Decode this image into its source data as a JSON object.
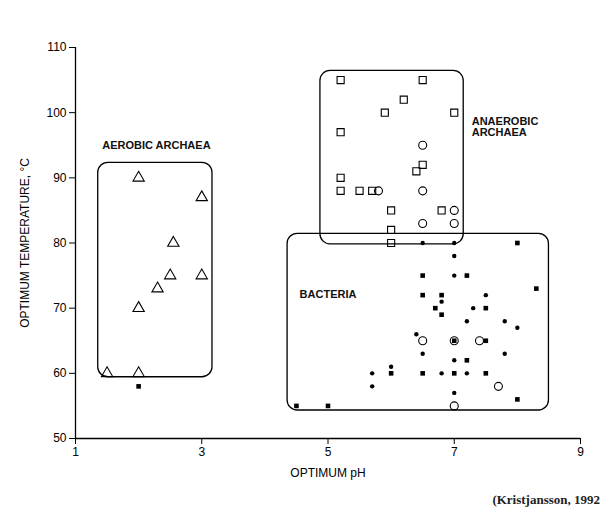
{
  "chart_data": {
    "type": "scatter",
    "caption": "(Kristjansson, 1992",
    "x_label": "OPTIMUM pH",
    "y_label": "OPTIMUM TEMPERATURE, °C",
    "xlim": [
      1,
      9
    ],
    "xticks": [
      1,
      3,
      5,
      7,
      9
    ],
    "ylim": [
      50,
      110
    ],
    "yticks": [
      50,
      60,
      70,
      80,
      90,
      100,
      110
    ],
    "grid": false,
    "regions": [
      {
        "label": "AEROBIC ARCHAEA",
        "x": [
          1.36,
          3.17
        ],
        "y": [
          59.4,
          92.3
        ]
      },
      {
        "label": "ANAEROBIC ARCHAEA",
        "x": [
          4.88,
          7.15
        ],
        "y": [
          79.8,
          106.4
        ]
      },
      {
        "label": "BACTERIA",
        "x": [
          4.36,
          8.5
        ],
        "y": [
          54.3,
          81.4
        ]
      }
    ],
    "series": [
      {
        "marker": "triangle-open",
        "color": "#000000",
        "x": [
          1.5,
          2.0,
          2.0,
          2.0,
          2.3,
          2.5,
          2.55,
          3.0,
          3.0
        ],
        "y": [
          60,
          90,
          70,
          60,
          73,
          75,
          80,
          87,
          75
        ]
      },
      {
        "marker": "square-open",
        "color": "#000000",
        "x": [
          5.2,
          6.5,
          5.2,
          5.9,
          6.2,
          7.0,
          6.4,
          6.5,
          5.2,
          5.5,
          5.7,
          5.2,
          6.0,
          6.0,
          6.0,
          6.8
        ],
        "y": [
          105,
          105,
          97,
          100,
          102,
          100,
          91,
          92,
          88,
          88,
          88,
          90,
          85,
          82,
          80,
          85
        ]
      },
      {
        "marker": "circle-open",
        "color": "#000000",
        "x": [
          6.5,
          5.8,
          6.5,
          6.5,
          7.0,
          7.0,
          7.0,
          7.7,
          7.4,
          7.0,
          6.5
        ],
        "y": [
          95,
          88,
          88,
          83,
          85,
          83,
          55,
          58,
          65,
          65,
          65
        ]
      },
      {
        "marker": "square-filled",
        "color": "#000000",
        "x": [
          2.0,
          4.5,
          5.0,
          6.5,
          6.5,
          6.8,
          6.8,
          7.0,
          7.2,
          6.0,
          6.5,
          7.0,
          7.5,
          8.0,
          8.3,
          8.0,
          6.7,
          7.5,
          7.2,
          7.5
        ],
        "y": [
          58,
          55,
          55,
          75,
          72,
          72,
          69,
          60,
          62,
          60,
          60,
          65,
          65,
          80,
          73,
          56,
          70,
          70,
          75,
          60
        ]
      },
      {
        "marker": "circle-filled",
        "color": "#000000",
        "x": [
          6.5,
          7.0,
          7.0,
          5.7,
          5.7,
          6.0,
          6.4,
          6.5,
          6.8,
          7.0,
          7.0,
          7.2,
          7.0,
          7.3,
          7.5,
          7.8,
          7.8,
          8.0,
          7.2,
          6.8
        ],
        "y": [
          80,
          80,
          78,
          58,
          60,
          61,
          66,
          63,
          60,
          57,
          62,
          68,
          75,
          70,
          72,
          68,
          63,
          67,
          60,
          71
        ]
      }
    ]
  }
}
